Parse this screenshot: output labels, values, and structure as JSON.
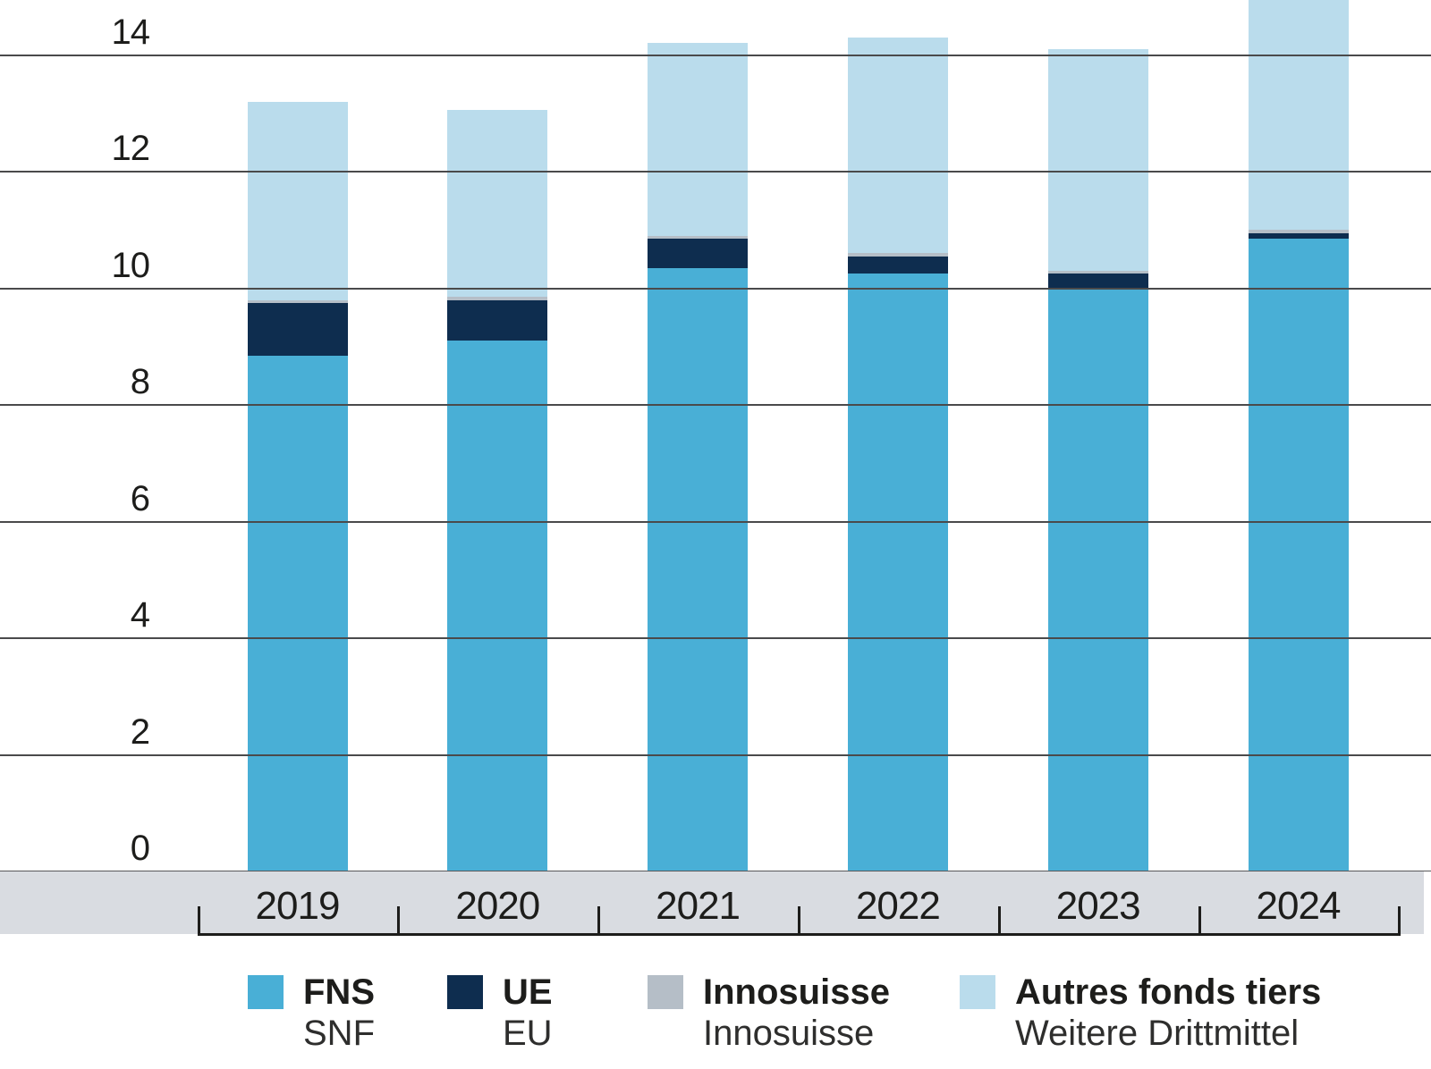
{
  "chart_data": {
    "type": "bar",
    "variant": "stacked-vertical",
    "title": "",
    "categories": [
      "2019",
      "2020",
      "2021",
      "2022",
      "2023",
      "2024"
    ],
    "series": [
      {
        "name": "FNS",
        "sublabel": "SNF",
        "color": "#49afd6",
        "values": [
          8.85,
          9.1,
          10.35,
          10.25,
          10.0,
          10.85
        ]
      },
      {
        "name": "UE",
        "sublabel": "EU",
        "color": "#0e2d4f",
        "values": [
          0.9,
          0.7,
          0.5,
          0.3,
          0.25,
          0.1
        ]
      },
      {
        "name": "Innosuisse",
        "sublabel": "Innosuisse",
        "color": "#b5bec7",
        "values": [
          0.05,
          0.05,
          0.05,
          0.05,
          0.05,
          0.05
        ]
      },
      {
        "name": "Autres fonds tiers",
        "sublabel": "Weitere Drittmittel",
        "color": "#badcec",
        "values": [
          3.4,
          3.2,
          3.3,
          3.7,
          3.8,
          4.3
        ]
      }
    ],
    "stack_totals": [
      13.2,
      13.05,
      14.2,
      14.3,
      14.1,
      15.3
    ],
    "y_ticks": [
      "0",
      "2",
      "4",
      "6",
      "8",
      "10",
      "12",
      "14"
    ],
    "ylim": [
      0,
      14.95
    ],
    "xlabel": "",
    "ylabel": "",
    "grid": true,
    "legend_position": "bottom",
    "colors": {
      "axis_band": "#d9dce1",
      "gridline": "#4a4a4b",
      "baseline": "#58585a",
      "bracket": "#1d1d1b",
      "text": "#1d1d1b"
    }
  }
}
